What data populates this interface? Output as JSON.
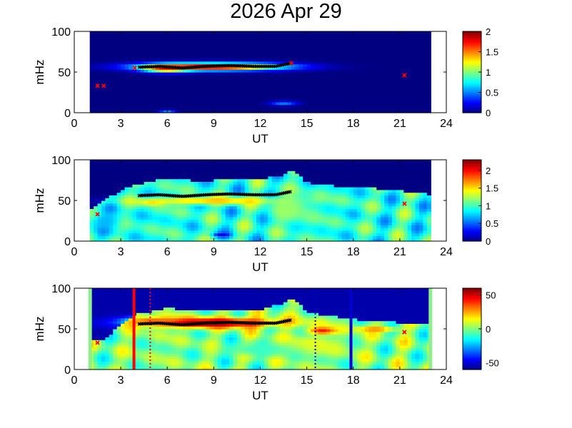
{
  "figure": {
    "title": "2026 Apr 29"
  },
  "chart_data": [
    {
      "type": "heatmap",
      "panel": 1,
      "xlabel": "UT",
      "ylabel": "mHz",
      "xlim": [
        0,
        24
      ],
      "ylim": [
        0,
        100
      ],
      "xticks": [
        0,
        3,
        6,
        9,
        12,
        15,
        18,
        21,
        24
      ],
      "yticks": [
        0,
        50,
        100
      ],
      "data_range_ut": [
        1.0,
        23.0
      ],
      "colorbar": {
        "min": 0,
        "max": 2,
        "ticks": [
          0,
          0.5,
          1,
          1.5,
          2
        ],
        "tick_labels": [
          "0",
          "0.5",
          "1",
          "1.5",
          "2"
        ],
        "colormap": "jet"
      },
      "background_value": 0,
      "blobs": [
        {
          "x": 9.0,
          "y": 57,
          "rx": 4.9,
          "ry": 5,
          "value": 2.0
        },
        {
          "x": 6.0,
          "y": 55,
          "rx": 1.6,
          "ry": 5,
          "value": 1.8
        },
        {
          "x": 6.0,
          "y": 1.0,
          "rx": 0.6,
          "ry": 3,
          "value": 0.55
        },
        {
          "x": 13.5,
          "y": 12,
          "rx": 1.0,
          "ry": 3,
          "value": 0.5
        }
      ],
      "ridge_points": [
        [
          4.2,
          56
        ],
        [
          5.5,
          57
        ],
        [
          7.0,
          55
        ],
        [
          8.5,
          57
        ],
        [
          10.0,
          58
        ],
        [
          11.5,
          57
        ],
        [
          13.0,
          57
        ],
        [
          14.0,
          61
        ]
      ],
      "ridge_markers": {
        "color": "#000000",
        "x_range": [
          4.2,
          14.0
        ],
        "y": 57
      },
      "red_markers": [
        [
          1.5,
          33
        ],
        [
          1.9,
          33
        ],
        [
          3.9,
          55
        ],
        [
          14.0,
          61
        ],
        [
          21.3,
          46
        ]
      ]
    },
    {
      "type": "heatmap",
      "panel": 2,
      "xlabel": "UT",
      "ylabel": "mHz",
      "xlim": [
        0,
        24
      ],
      "ylim": [
        0,
        100
      ],
      "xticks": [
        0,
        3,
        6,
        9,
        12,
        15,
        18,
        21,
        24
      ],
      "yticks": [
        0,
        50,
        100
      ],
      "data_range_ut": [
        1.0,
        23.0
      ],
      "colorbar": {
        "min": 0,
        "max": 2.3,
        "ticks": [
          0,
          0.5,
          1,
          1.5,
          2
        ],
        "tick_labels": [
          "0",
          "0.5",
          "1",
          "1.5",
          "2"
        ],
        "colormap": "jet"
      },
      "background_value": 0.95,
      "upper_boundary": [
        [
          1.0,
          38
        ],
        [
          2.0,
          52
        ],
        [
          3.0,
          62
        ],
        [
          4.0,
          70
        ],
        [
          5.0,
          74
        ],
        [
          6.0,
          78
        ],
        [
          8.0,
          74
        ],
        [
          10.0,
          76
        ],
        [
          12.0,
          76
        ],
        [
          13.5,
          82
        ],
        [
          14.2,
          88
        ],
        [
          15.0,
          72
        ],
        [
          17.0,
          68
        ],
        [
          19.0,
          66
        ],
        [
          21.0,
          62
        ],
        [
          23.0,
          58
        ]
      ],
      "above_value": 0.0,
      "blobs": [
        {
          "x": 9.0,
          "y": 50,
          "rx": 5.0,
          "ry": 5,
          "value": 1.6
        },
        {
          "x": 5.0,
          "y": 48,
          "rx": 1.0,
          "ry": 4,
          "value": 1.5
        },
        {
          "x": 9.5,
          "y": 8,
          "rx": 0.6,
          "ry": 3,
          "value": 0.2
        },
        {
          "x": 14.0,
          "y": 40,
          "rx": 1.5,
          "ry": 20,
          "value": 1.2
        },
        {
          "x": 2.0,
          "y": 25,
          "rx": 1.2,
          "ry": 12,
          "value": 0.7
        }
      ],
      "ridge_points": [
        [
          4.2,
          56
        ],
        [
          5.5,
          57
        ],
        [
          7.0,
          55
        ],
        [
          8.5,
          57
        ],
        [
          10.0,
          58
        ],
        [
          11.5,
          57
        ],
        [
          13.0,
          57
        ],
        [
          14.0,
          61
        ]
      ],
      "red_markers": [
        [
          1.5,
          33
        ],
        [
          21.3,
          46
        ]
      ]
    },
    {
      "type": "heatmap",
      "panel": 3,
      "xlabel": "UT",
      "ylabel": "mHz",
      "xlim": [
        0,
        24
      ],
      "ylim": [
        0,
        100
      ],
      "xticks": [
        0,
        3,
        6,
        9,
        12,
        15,
        18,
        21,
        24
      ],
      "yticks": [
        0,
        50,
        100
      ],
      "data_range_ut": [
        1.0,
        23.0
      ],
      "edge_color": "#90ee90",
      "colorbar": {
        "min": -60,
        "max": 60,
        "ticks": [
          -50,
          0,
          50
        ],
        "tick_labels": [
          "-50",
          "0",
          "50"
        ],
        "colormap": "jet"
      },
      "background_value": 0,
      "upper_boundary": [
        [
          1.0,
          38
        ],
        [
          2.0,
          38
        ],
        [
          3.0,
          55
        ],
        [
          4.0,
          68
        ],
        [
          5.0,
          72
        ],
        [
          6.0,
          76
        ],
        [
          8.0,
          72
        ],
        [
          10.0,
          74
        ],
        [
          12.0,
          74
        ],
        [
          13.5,
          82
        ],
        [
          14.2,
          88
        ],
        [
          15.0,
          70
        ],
        [
          17.0,
          65
        ],
        [
          19.0,
          60
        ],
        [
          21.0,
          58
        ],
        [
          23.0,
          55
        ]
      ],
      "above_value": -55,
      "blobs": [
        {
          "x": 9.0,
          "y": 58,
          "rx": 4.8,
          "ry": 7,
          "value": 60
        },
        {
          "x": 5.0,
          "y": 60,
          "rx": 1.5,
          "ry": 5,
          "value": 35
        },
        {
          "x": 16.0,
          "y": 48,
          "rx": 1.0,
          "ry": 5,
          "value": 45
        },
        {
          "x": 19.5,
          "y": 50,
          "rx": 1.5,
          "ry": 4,
          "value": 30
        },
        {
          "x": 15.0,
          "y": 30,
          "rx": 2.5,
          "ry": 12,
          "value": 15
        },
        {
          "x": 12.0,
          "y": 25,
          "rx": 3.0,
          "ry": 10,
          "value": -8
        }
      ],
      "ridge_points": [
        [
          4.2,
          56
        ],
        [
          5.5,
          57
        ],
        [
          7.0,
          55
        ],
        [
          8.5,
          57
        ],
        [
          10.0,
          58
        ],
        [
          11.5,
          57
        ],
        [
          13.0,
          57
        ],
        [
          14.0,
          61
        ]
      ],
      "red_markers": [
        [
          1.5,
          33
        ],
        [
          21.3,
          46
        ]
      ],
      "vertical_lines": [
        {
          "x": 3.85,
          "color": "#ff0000",
          "style": "solid"
        },
        {
          "x": 4.9,
          "color": "#ff0000",
          "style": "dotted"
        },
        {
          "x": 15.55,
          "color": "#0000cc",
          "style": "dotted"
        },
        {
          "x": 17.85,
          "color": "#0000cc",
          "style": "solid"
        }
      ]
    }
  ]
}
